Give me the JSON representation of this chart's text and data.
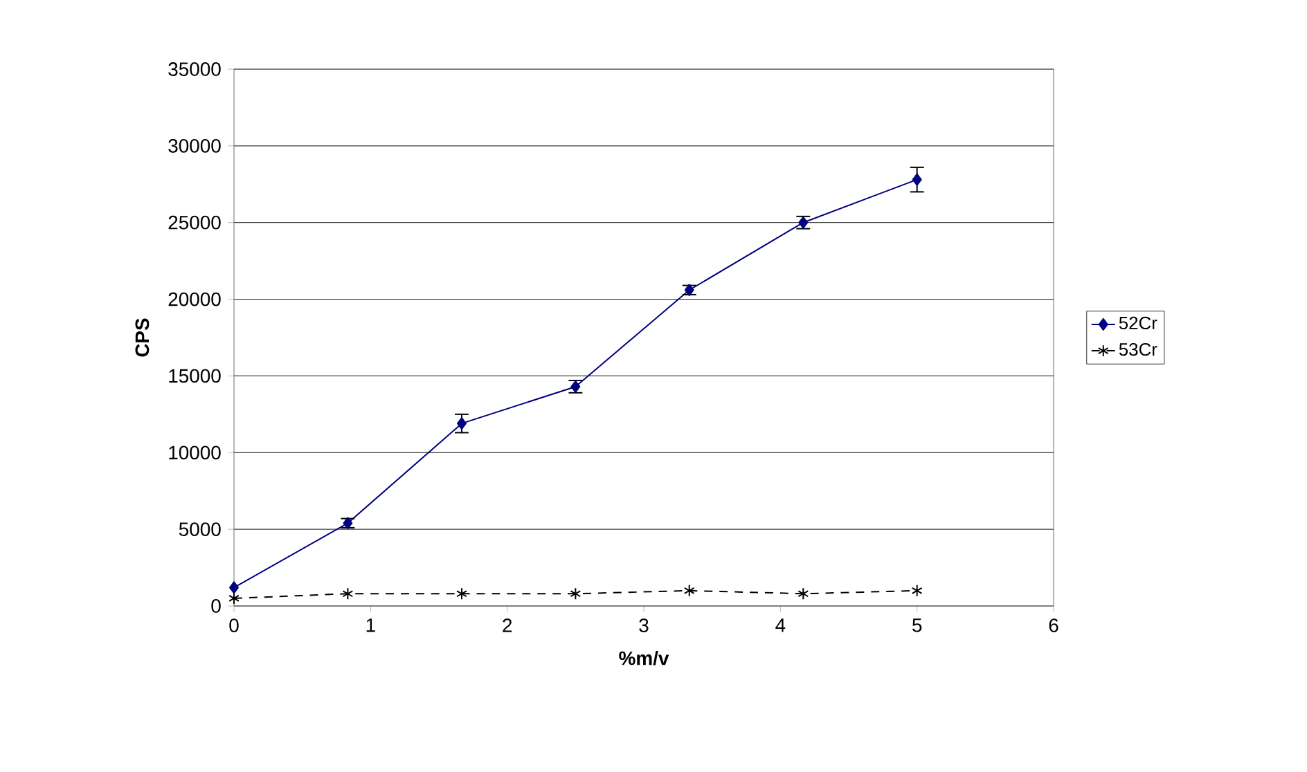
{
  "chart_data": {
    "type": "line",
    "xlabel": "%m/v",
    "ylabel": "CPS",
    "x": [
      0,
      0.833,
      1.667,
      2.5,
      3.333,
      4.167,
      5
    ],
    "series": [
      {
        "name": "52Cr",
        "color": "#000080",
        "marker": "diamond",
        "line_style": "solid",
        "values": [
          1200,
          5400,
          11900,
          14300,
          20600,
          25000,
          27800
        ],
        "errors": [
          null,
          300,
          600,
          400,
          300,
          400,
          800
        ]
      },
      {
        "name": "53Cr",
        "color": "#000000",
        "marker": "cross",
        "line_style": "dashed",
        "values": [
          500,
          800,
          800,
          800,
          1000,
          800,
          1000
        ]
      }
    ],
    "xlim": [
      0,
      6
    ],
    "xticks": [
      0,
      1,
      2,
      3,
      4,
      5,
      6
    ],
    "ylim": [
      0,
      35000
    ],
    "yticks": [
      0,
      5000,
      10000,
      15000,
      20000,
      25000,
      30000,
      35000
    ],
    "grid": "y",
    "legend": "right"
  }
}
